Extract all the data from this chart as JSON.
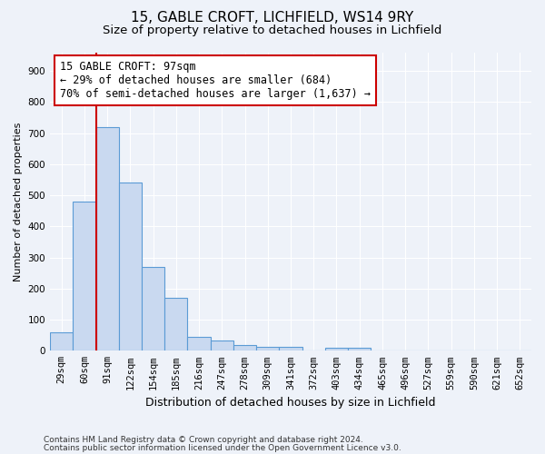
{
  "title1": "15, GABLE CROFT, LICHFIELD, WS14 9RY",
  "title2": "Size of property relative to detached houses in Lichfield",
  "xlabel": "Distribution of detached houses by size in Lichfield",
  "ylabel": "Number of detached properties",
  "categories": [
    "29sqm",
    "60sqm",
    "91sqm",
    "122sqm",
    "154sqm",
    "185sqm",
    "216sqm",
    "247sqm",
    "278sqm",
    "309sqm",
    "341sqm",
    "372sqm",
    "403sqm",
    "434sqm",
    "465sqm",
    "496sqm",
    "527sqm",
    "559sqm",
    "590sqm",
    "621sqm",
    "652sqm"
  ],
  "values": [
    60,
    480,
    720,
    540,
    270,
    170,
    45,
    33,
    18,
    13,
    13,
    0,
    10,
    10,
    0,
    0,
    0,
    0,
    0,
    0,
    0
  ],
  "bar_color": "#c9d9f0",
  "bar_edge_color": "#5b9bd5",
  "property_line_color": "#cc0000",
  "annotation_line1": "15 GABLE CROFT: 97sqm",
  "annotation_line2": "← 29% of detached houses are smaller (684)",
  "annotation_line3": "70% of semi-detached houses are larger (1,637) →",
  "annotation_box_color": "#ffffff",
  "annotation_box_edge": "#cc0000",
  "ylim": [
    0,
    960
  ],
  "yticks": [
    0,
    100,
    200,
    300,
    400,
    500,
    600,
    700,
    800,
    900
  ],
  "footnote1": "Contains HM Land Registry data © Crown copyright and database right 2024.",
  "footnote2": "Contains public sector information licensed under the Open Government Licence v3.0.",
  "background_color": "#eef2f9",
  "grid_color": "#ffffff",
  "title1_fontsize": 11,
  "title2_fontsize": 9.5,
  "xlabel_fontsize": 9,
  "ylabel_fontsize": 8,
  "tick_fontsize": 7.5,
  "annotation_fontsize": 8.5,
  "footnote_fontsize": 6.5
}
